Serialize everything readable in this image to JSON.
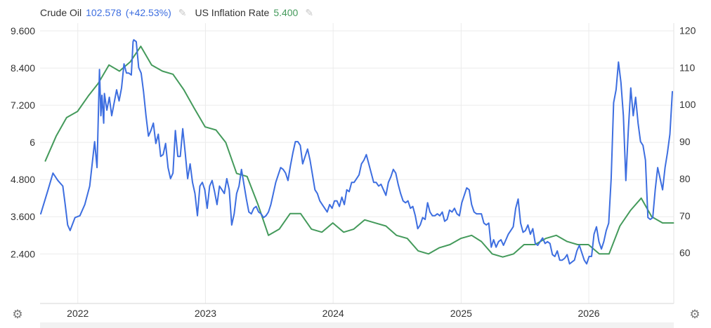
{
  "legend": {
    "oil_name": "Crude Oil",
    "oil_value": "102.578",
    "oil_change": "(+42.53%)",
    "inf_name": "US Inflation Rate",
    "inf_value": "5.400"
  },
  "icons": {
    "pencil": "pencil-icon",
    "settings": "gear-icon"
  },
  "colors": {
    "oil": "#3d6ee0",
    "inflation": "#449a5b",
    "grid": "#ebebeb",
    "text": "#333333"
  },
  "chart_data": {
    "type": "line",
    "x_tick_labels": [
      "2022",
      "2023",
      "2024",
      "2025",
      "2026"
    ],
    "x_tick_dates": [
      "2022-01-01",
      "2023-01-01",
      "2024-01-01",
      "2025-01-01",
      "2026-01-01"
    ],
    "xlim": [
      "2021-09-15",
      "2026-09-01"
    ],
    "left_axis": {
      "ticks": [
        "2.400",
        "3.600",
        "4.800",
        "6",
        "7.200",
        "8.400",
        "9.600"
      ],
      "tick_values": [
        2.4,
        3.6,
        4.8,
        6,
        7.2,
        8.4,
        9.6
      ],
      "ylim": [
        0.8,
        9.85
      ]
    },
    "right_axis": {
      "ticks": [
        "60",
        "70",
        "80",
        "90",
        "100",
        "110",
        "120"
      ],
      "tick_values": [
        60,
        70,
        80,
        90,
        100,
        110,
        120
      ],
      "ylim": [
        46.3,
        122
      ]
    },
    "grid": true,
    "series": [
      {
        "name": "Crude Oil",
        "axis": "right",
        "color": "#3d6ee0",
        "x": [
          "2021-09-17",
          "2021-10-08",
          "2021-10-22",
          "2021-11-05",
          "2021-11-19",
          "2021-11-26",
          "2021-12-03",
          "2021-12-10",
          "2021-12-24",
          "2022-01-07",
          "2022-01-21",
          "2022-02-04",
          "2022-02-18",
          "2022-02-25",
          "2022-03-04",
          "2022-03-08",
          "2022-03-11",
          "2022-03-16",
          "2022-03-18",
          "2022-03-25",
          "2022-04-01",
          "2022-04-08",
          "2022-04-15",
          "2022-04-22",
          "2022-04-29",
          "2022-05-06",
          "2022-05-13",
          "2022-05-20",
          "2022-05-27",
          "2022-06-03",
          "2022-06-08",
          "2022-06-10",
          "2022-06-17",
          "2022-06-24",
          "2022-07-01",
          "2022-07-08",
          "2022-07-15",
          "2022-07-22",
          "2022-07-29",
          "2022-08-05",
          "2022-08-12",
          "2022-08-19",
          "2022-08-26",
          "2022-09-02",
          "2022-09-09",
          "2022-09-16",
          "2022-09-23",
          "2022-09-30",
          "2022-10-07",
          "2022-10-14",
          "2022-10-21",
          "2022-10-28",
          "2022-11-04",
          "2022-11-11",
          "2022-11-18",
          "2022-11-25",
          "2022-12-02",
          "2022-12-09",
          "2022-12-16",
          "2022-12-23",
          "2022-12-30",
          "2023-01-06",
          "2023-01-13",
          "2023-01-20",
          "2023-01-27",
          "2023-02-03",
          "2023-02-10",
          "2023-02-17",
          "2023-02-24",
          "2023-03-03",
          "2023-03-10",
          "2023-03-17",
          "2023-03-24",
          "2023-03-31",
          "2023-04-07",
          "2023-04-14",
          "2023-04-21",
          "2023-04-28",
          "2023-05-05",
          "2023-05-12",
          "2023-05-19",
          "2023-05-26",
          "2023-06-02",
          "2023-06-09",
          "2023-06-16",
          "2023-06-23",
          "2023-06-30",
          "2023-07-07",
          "2023-07-14",
          "2023-07-21",
          "2023-07-28",
          "2023-08-04",
          "2023-08-11",
          "2023-08-18",
          "2023-08-25",
          "2023-09-01",
          "2023-09-08",
          "2023-09-15",
          "2023-09-22",
          "2023-09-29",
          "2023-10-06",
          "2023-10-13",
          "2023-10-20",
          "2023-10-27",
          "2023-11-03",
          "2023-11-10",
          "2023-11-17",
          "2023-11-24",
          "2023-12-01",
          "2023-12-08",
          "2023-12-15",
          "2023-12-22",
          "2023-12-29",
          "2024-01-05",
          "2024-01-12",
          "2024-01-19",
          "2024-01-26",
          "2024-02-02",
          "2024-02-09",
          "2024-02-16",
          "2024-02-23",
          "2024-03-01",
          "2024-03-08",
          "2024-03-15",
          "2024-03-22",
          "2024-03-29",
          "2024-04-05",
          "2024-04-12",
          "2024-04-19",
          "2024-04-26",
          "2024-05-03",
          "2024-05-10",
          "2024-05-17",
          "2024-05-24",
          "2024-05-31",
          "2024-06-07",
          "2024-06-14",
          "2024-06-21",
          "2024-06-28",
          "2024-07-05",
          "2024-07-12",
          "2024-07-19",
          "2024-07-26",
          "2024-08-02",
          "2024-08-09",
          "2024-08-16",
          "2024-08-23",
          "2024-08-30",
          "2024-09-06",
          "2024-09-13",
          "2024-09-20",
          "2024-09-27",
          "2024-10-04",
          "2024-10-11",
          "2024-10-18",
          "2024-10-25",
          "2024-11-01",
          "2024-11-08",
          "2024-11-15",
          "2024-11-22",
          "2024-11-29",
          "2024-12-06",
          "2024-12-13",
          "2024-12-20",
          "2024-12-27",
          "2025-01-03",
          "2025-01-10",
          "2025-01-17",
          "2025-01-24",
          "2025-01-31",
          "2025-02-07",
          "2025-02-14",
          "2025-02-21",
          "2025-02-28",
          "2025-03-07",
          "2025-03-14",
          "2025-03-21",
          "2025-03-28",
          "2025-04-04",
          "2025-04-11",
          "2025-04-18",
          "2025-04-25",
          "2025-05-02",
          "2025-05-09",
          "2025-05-16",
          "2025-05-23",
          "2025-05-30",
          "2025-06-06",
          "2025-06-13",
          "2025-06-20",
          "2025-06-27",
          "2025-07-04",
          "2025-07-11",
          "2025-07-18",
          "2025-07-25",
          "2025-08-01",
          "2025-08-08",
          "2025-08-15",
          "2025-08-22",
          "2025-08-29",
          "2025-09-05",
          "2025-09-12",
          "2025-09-19",
          "2025-09-26",
          "2025-10-03",
          "2025-10-10",
          "2025-10-17",
          "2025-10-24",
          "2025-10-31",
          "2025-11-07",
          "2025-11-14",
          "2025-11-21",
          "2025-11-28",
          "2025-12-05",
          "2025-12-12",
          "2025-12-19",
          "2025-12-26",
          "2026-01-02",
          "2026-01-09",
          "2026-01-16",
          "2026-01-23",
          "2026-01-30",
          "2026-02-06",
          "2026-02-13",
          "2026-02-20",
          "2026-02-27",
          "2026-03-06",
          "2026-03-13",
          "2026-03-20",
          "2026-03-27",
          "2026-04-03",
          "2026-04-10",
          "2026-04-17",
          "2026-04-24",
          "2026-05-01",
          "2026-05-08",
          "2026-05-15",
          "2026-05-22",
          "2026-05-29",
          "2026-06-05",
          "2026-06-12",
          "2026-06-19",
          "2026-06-26",
          "2026-07-03",
          "2026-07-10",
          "2026-07-17",
          "2026-07-24",
          "2026-07-31",
          "2026-08-07",
          "2026-08-14",
          "2026-08-21",
          "2026-08-28"
        ],
        "values": [
          70.5,
          77.0,
          81.5,
          79.5,
          78.0,
          73.0,
          67.5,
          66.0,
          69.5,
          70.0,
          73.0,
          78.0,
          90.0,
          83.0,
          109.5,
          97.0,
          102.5,
          95.0,
          103.0,
          98.5,
          102.0,
          97.0,
          100.5,
          104.0,
          101.0,
          104.5,
          111.0,
          108.5,
          108.5,
          108.0,
          117.0,
          117.5,
          117.0,
          110.0,
          108.5,
          103.5,
          97.0,
          91.5,
          93.0,
          95.0,
          89.5,
          92.0,
          86.0,
          86.5,
          89.5,
          83.0,
          80.0,
          81.5,
          93.0,
          86.0,
          86.0,
          93.5,
          87.0,
          80.0,
          84.0,
          79.0,
          76.0,
          70.0,
          78.0,
          79.0,
          77.0,
          72.0,
          78.0,
          79.5,
          76.5,
          73.0,
          78.0,
          77.0,
          76.0,
          80.0,
          77.0,
          67.5,
          70.5,
          76.0,
          78.0,
          82.5,
          78.5,
          74.5,
          71.0,
          70.5,
          72.0,
          72.5,
          71.0,
          70.5,
          69.5,
          70.0,
          71.0,
          73.0,
          76.0,
          79.0,
          81.0,
          83.0,
          82.5,
          81.5,
          79.5,
          83.5,
          87.0,
          90.0,
          90.0,
          89.0,
          84.0,
          86.0,
          88.0,
          85.0,
          81.0,
          77.0,
          76.0,
          74.0,
          73.0,
          72.0,
          71.0,
          73.0,
          72.0,
          74.0,
          74.0,
          72.5,
          75.0,
          73.0,
          77.0,
          76.5,
          79.0,
          79.0,
          80.0,
          81.0,
          84.0,
          85.0,
          86.5,
          84.0,
          81.5,
          79.0,
          79.0,
          78.0,
          78.5,
          77.0,
          75.5,
          79.0,
          80.5,
          82.5,
          81.5,
          78.5,
          76.0,
          74.0,
          73.5,
          74.0,
          72.0,
          72.5,
          70.0,
          66.5,
          67.5,
          69.5,
          69.0,
          73.5,
          71.0,
          70.0,
          70.0,
          70.5,
          70.0,
          71.0,
          68.5,
          69.0,
          71.5,
          71.0,
          72.0,
          70.5,
          70.0,
          73.5,
          75.5,
          77.5,
          77.0,
          73.0,
          71.0,
          70.5,
          70.5,
          70.5,
          68.0,
          67.5,
          68.0,
          61.5,
          63.5,
          61.5,
          63.0,
          63.5,
          62.0,
          63.5,
          65.0,
          66.0,
          67.0,
          72.0,
          74.5,
          68.0,
          65.5,
          66.0,
          67.5,
          65.0,
          66.5,
          62.5,
          62.0,
          63.0,
          64.0,
          62.5,
          63.0,
          62.5,
          59.5,
          59.0,
          60.5,
          58.0,
          58.0,
          58.5,
          59.5,
          57.0,
          57.5,
          58.0,
          60.5,
          62.0,
          60.0,
          58.0,
          57.0,
          59.0,
          59.0,
          65.0,
          67.0,
          63.0,
          61.0,
          63.0,
          66.0,
          68.0,
          80.0,
          100.5,
          104.0,
          111.5,
          106.0,
          97.0,
          79.5,
          93.0,
          104.5,
          97.0,
          102.0,
          95.0,
          90.0,
          89.0,
          85.0,
          69.5,
          69.0,
          69.5,
          77.0,
          83.0,
          80.0,
          77.0,
          83.0,
          87.0,
          92.0,
          103.5
        ]
      },
      {
        "name": "US Inflation Rate",
        "axis": "left",
        "color": "#449a5b",
        "x": [
          "2021-09-30",
          "2021-10-31",
          "2021-11-30",
          "2021-12-31",
          "2022-01-31",
          "2022-02-28",
          "2022-03-31",
          "2022-04-30",
          "2022-05-31",
          "2022-06-30",
          "2022-07-31",
          "2022-08-31",
          "2022-09-30",
          "2022-10-31",
          "2022-11-30",
          "2022-12-31",
          "2023-01-31",
          "2023-02-28",
          "2023-03-31",
          "2023-04-30",
          "2023-05-31",
          "2023-06-30",
          "2023-07-31",
          "2023-08-31",
          "2023-09-30",
          "2023-10-31",
          "2023-11-30",
          "2023-12-31",
          "2024-01-31",
          "2024-02-29",
          "2024-03-31",
          "2024-04-30",
          "2024-05-31",
          "2024-06-30",
          "2024-07-31",
          "2024-08-31",
          "2024-09-30",
          "2024-10-31",
          "2024-11-30",
          "2024-12-31",
          "2025-01-31",
          "2025-02-28",
          "2025-03-31",
          "2025-04-30",
          "2025-05-31",
          "2025-06-30",
          "2025-07-31",
          "2025-08-31",
          "2025-09-30",
          "2025-10-31",
          "2025-11-30",
          "2025-12-31",
          "2026-01-31",
          "2026-02-28",
          "2026-03-31",
          "2026-04-30",
          "2026-05-31",
          "2026-06-30",
          "2026-07-31",
          "2026-08-31"
        ],
        "values": [
          5.4,
          6.2,
          6.8,
          7.0,
          7.5,
          7.9,
          8.5,
          8.3,
          8.6,
          9.1,
          8.5,
          8.3,
          8.2,
          7.7,
          7.1,
          6.5,
          6.4,
          6.0,
          5.0,
          4.9,
          4.0,
          3.0,
          3.2,
          3.7,
          3.7,
          3.2,
          3.1,
          3.4,
          3.1,
          3.2,
          3.5,
          3.4,
          3.3,
          3.0,
          2.9,
          2.5,
          2.4,
          2.6,
          2.7,
          2.9,
          3.0,
          2.8,
          2.4,
          2.3,
          2.4,
          2.7,
          2.7,
          2.9,
          3.0,
          2.8,
          2.7,
          2.7,
          2.4,
          2.4,
          3.3,
          3.8,
          4.2,
          3.6,
          3.4,
          3.4
        ]
      }
    ]
  }
}
